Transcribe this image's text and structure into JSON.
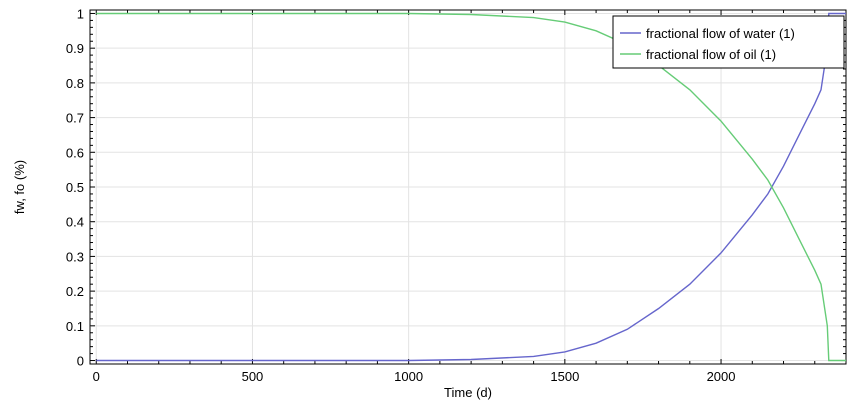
{
  "chart_data": {
    "type": "line",
    "title": "",
    "xlabel": "Time (d)",
    "ylabel": "fw, fo (%)",
    "xlim": [
      -20,
      2400
    ],
    "ylim": [
      -0.01,
      1.01
    ],
    "x_ticks": [
      0,
      500,
      1000,
      1500,
      2000
    ],
    "x_tick_labels": [
      "0",
      "500",
      "1000",
      "1500",
      "2000"
    ],
    "y_ticks": [
      0,
      0.1,
      0.2,
      0.3,
      0.4,
      0.5,
      0.6,
      0.7,
      0.8,
      0.9,
      1
    ],
    "y_tick_labels": [
      "0",
      "0.1",
      "0.2",
      "0.3",
      "0.4",
      "0.5",
      "0.6",
      "0.7",
      "0.8",
      "0.9",
      "1"
    ],
    "grid": true,
    "legend_position": "top-right",
    "series": [
      {
        "name": "fractional flow of water (1)",
        "color": "#6666cc",
        "x": [
          0,
          500,
          1000,
          1200,
          1400,
          1500,
          1600,
          1700,
          1800,
          1900,
          2000,
          2100,
          2150,
          2200,
          2250,
          2300,
          2320,
          2340,
          2345,
          2350,
          2400
        ],
        "y": [
          0,
          0,
          0,
          0.003,
          0.012,
          0.025,
          0.05,
          0.09,
          0.15,
          0.22,
          0.31,
          0.42,
          0.48,
          0.56,
          0.65,
          0.74,
          0.78,
          0.9,
          1.0,
          1.0,
          1.0
        ]
      },
      {
        "name": "fractional flow of oil (1)",
        "color": "#66cc77",
        "x": [
          0,
          500,
          1000,
          1200,
          1400,
          1500,
          1600,
          1700,
          1800,
          1900,
          2000,
          2100,
          2150,
          2200,
          2250,
          2300,
          2320,
          2340,
          2345,
          2350,
          2400
        ],
        "y": [
          1,
          1,
          1,
          0.997,
          0.988,
          0.975,
          0.95,
          0.91,
          0.85,
          0.78,
          0.69,
          0.58,
          0.52,
          0.44,
          0.35,
          0.26,
          0.22,
          0.1,
          0,
          0,
          0
        ]
      }
    ]
  }
}
